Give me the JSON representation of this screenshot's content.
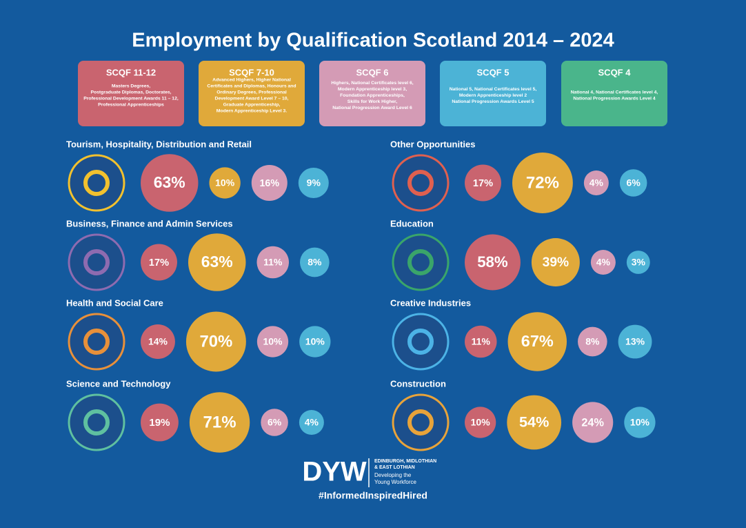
{
  "title": "Employment by Qualification Scotland 2014 – 2024",
  "levels": [
    {
      "name": "SCQF 11-12",
      "color": "#c9646f",
      "lines": [
        "Masters Degrees,",
        "Postgraduate Diplomas, Doctorates,",
        "Professional Development Awards 11 – 12,",
        "Professional Apprenticeships"
      ]
    },
    {
      "name": "SCQF 7-10",
      "color": "#e0a93a",
      "lines": [
        "Advanced Highers, Higher National",
        "Certificates and Diplomas, Honours and",
        "Ordinary Degrees, Professional",
        "Development Award Level 7 – 10,",
        "Graduate Apprenticeship,",
        "Modern Apprenticeship Level 3."
      ]
    },
    {
      "name": "SCQF 6",
      "color": "#d49bb5",
      "lines": [
        "Highers, National Certificates level 6,",
        "Modern Apprenticeship level 3,",
        "Foundation Apprenticeships,",
        "Skills for Work Higher,",
        "National Progression Award Level 6"
      ]
    },
    {
      "name": "SCQF 5",
      "color": "#4cb3d6",
      "lines": [
        "National 5, National Certificates level 5,",
        "Modern Apprenticeship level 2",
        "National Progression Awards Level 5"
      ]
    },
    {
      "name": "SCQF 4",
      "color": "#4ab58b",
      "lines": [
        "National 4, National Certificates level 4,",
        "National Progression Awards Level 4"
      ]
    }
  ],
  "sectors": [
    {
      "name": "Tourism, Hospitality, Distribution and Retail",
      "color": "#f2c12e",
      "values": [
        63,
        10,
        16,
        9
      ],
      "value_labels": [
        "63%",
        "10%",
        "16%",
        "9%"
      ]
    },
    {
      "name": "Business, Finance and Admin Services",
      "color": "#8e6bb0",
      "values": [
        17,
        63,
        11,
        8
      ],
      "value_labels": [
        "17%",
        "63%",
        "11%",
        "8%"
      ]
    },
    {
      "name": "Health and Social Care",
      "color": "#e8903a",
      "values": [
        14,
        70,
        10,
        10
      ],
      "value_labels": [
        "14%",
        "70%",
        "10%",
        "10%"
      ]
    },
    {
      "name": "Science and Technology",
      "color": "#5fc0a0",
      "values": [
        19,
        71,
        6,
        4
      ],
      "value_labels": [
        "19%",
        "71%",
        "6%",
        "4%"
      ]
    },
    {
      "name": "Other Opportunities",
      "color": "#e0604f",
      "values": [
        17,
        72,
        4,
        6
      ],
      "value_labels": [
        "17%",
        "72%",
        "4%",
        "6%"
      ]
    },
    {
      "name": "Education",
      "color": "#3aa56a",
      "values": [
        58,
        39,
        4,
        3
      ],
      "value_labels": [
        "58%",
        "39%",
        "4%",
        "3%"
      ]
    },
    {
      "name": "Creative Industries",
      "color": "#4cb3e6",
      "values": [
        11,
        67,
        8,
        13
      ],
      "value_labels": [
        "11%",
        "67%",
        "8%",
        "13%"
      ]
    },
    {
      "name": "Construction",
      "color": "#e8a33a",
      "values": [
        10,
        54,
        24,
        10
      ],
      "value_labels": [
        "10%",
        "54%",
        "24%",
        "10%"
      ]
    }
  ],
  "footer": {
    "logo": "DYW",
    "region": [
      "EDINBURGH, MIDLOTHIAN",
      "& EAST LOTHIAN"
    ],
    "tagline": [
      "Developing the",
      "Young Workforce"
    ],
    "hashtag": "#InformedInspiredHired"
  }
}
